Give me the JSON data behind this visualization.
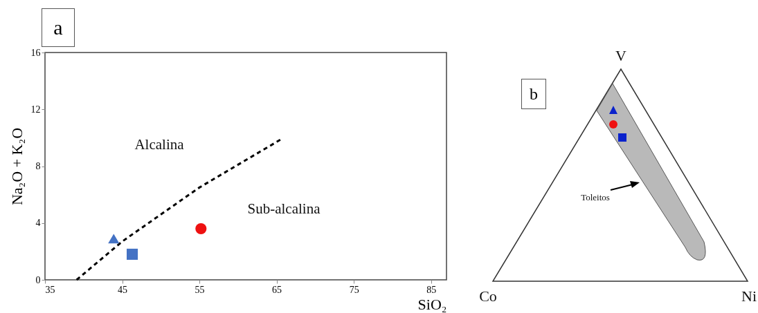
{
  "chart_data": [
    {
      "type": "scatter",
      "title": "a",
      "xlabel": "SiO₂",
      "ylabel": "Na₂O + K₂O",
      "xlim": [
        35,
        87
      ],
      "xticks": [
        35,
        45,
        55,
        65,
        75,
        85
      ],
      "ylim": [
        0,
        16
      ],
      "yticks": [
        0,
        4,
        8,
        12,
        16
      ],
      "grid": false,
      "annotations": [
        "Alcalina",
        "Sub-alcalina"
      ],
      "series": [
        {
          "type": "line",
          "color": "#000000",
          "line_style": "dashed",
          "marker": "none",
          "x": [
            39.1,
            45,
            55,
            65.6
          ],
          "values": [
            0,
            2.7,
            6.5,
            9.9
          ]
        },
        {
          "type": "scatter",
          "marker": "triangle",
          "color": "#4472c4",
          "x": [
            43.9
          ],
          "values": [
            2.9
          ]
        },
        {
          "type": "scatter",
          "marker": "square",
          "color": "#4472c4",
          "x": [
            46.3
          ],
          "values": [
            1.8
          ]
        },
        {
          "type": "scatter",
          "marker": "circle",
          "color": "#ee1111",
          "x": [
            55.2
          ],
          "values": [
            3.6
          ]
        }
      ]
    },
    {
      "type": "other",
      "title": "b",
      "annotations": [
        "V",
        "Co",
        "Ni",
        "Toleitos"
      ]
    }
  ]
}
